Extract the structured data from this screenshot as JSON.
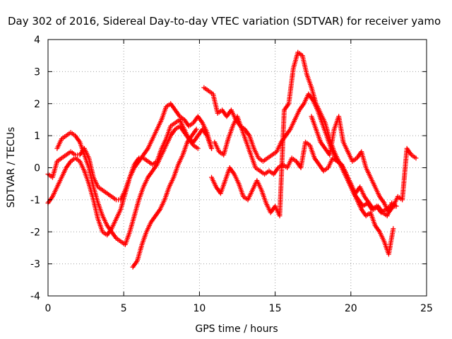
{
  "chart_data": {
    "type": "scatter",
    "title": "Day 302 of 2016, Sidereal Day-to-day VTEC variation (SDTVAR) for receiver yamo",
    "xlabel": "GPS time / hours",
    "ylabel": "SDTVAR / TECUs",
    "xlim": [
      0,
      25
    ],
    "ylim": [
      -4,
      4
    ],
    "xticks": [
      "0",
      "5",
      "10",
      "15",
      "20",
      "25"
    ],
    "yticks": [
      "-4",
      "-3",
      "-2",
      "-1",
      "0",
      "1",
      "2",
      "3",
      "4"
    ],
    "grid": true,
    "legend": "none",
    "marker": "plus",
    "color": "#ff0000",
    "series": [
      {
        "x": [
          0.0,
          0.3,
          0.6,
          0.9,
          1.2,
          1.5,
          1.8,
          2.1,
          2.4,
          2.7,
          3.0,
          3.3,
          3.6,
          3.9,
          4.2,
          4.5,
          4.8,
          5.1,
          5.4,
          5.7,
          6.0,
          6.3,
          6.6,
          6.9,
          7.2,
          7.5,
          7.8,
          8.1,
          8.4,
          8.7,
          9.0,
          9.3,
          9.6,
          9.9,
          10.2,
          10.5,
          10.8
        ],
        "y": [
          -0.2,
          -0.3,
          0.2,
          0.3,
          0.4,
          0.5,
          0.4,
          0.4,
          0.6,
          0.3,
          -0.3,
          -0.6,
          -0.7,
          -0.8,
          -0.9,
          -1.0,
          -1.0,
          -0.7,
          -0.3,
          0.1,
          0.3,
          0.3,
          0.2,
          0.1,
          0.2,
          0.6,
          0.9,
          1.3,
          1.4,
          1.5,
          1.2,
          0.9,
          0.8,
          1.0,
          1.2,
          1.0,
          0.6
        ]
      },
      {
        "x": [
          0.0,
          0.3,
          0.6,
          0.9,
          1.2,
          1.5,
          1.8,
          2.1,
          2.4,
          2.7,
          3.0,
          3.3,
          3.6,
          3.9,
          4.2,
          4.5,
          4.8,
          5.1,
          5.4,
          5.7,
          6.0,
          6.3,
          6.6,
          6.9,
          7.2,
          7.5,
          7.8,
          8.1,
          8.4,
          8.7,
          9.0,
          9.3,
          9.6,
          9.9,
          10.2,
          10.5,
          10.8
        ],
        "y": [
          -1.1,
          -0.9,
          -0.6,
          -0.3,
          0.0,
          0.2,
          0.3,
          0.2,
          -0.1,
          -0.5,
          -1.0,
          -1.6,
          -2.0,
          -2.1,
          -1.9,
          -1.6,
          -1.3,
          -0.8,
          -0.3,
          0.0,
          0.2,
          0.4,
          0.6,
          0.9,
          1.2,
          1.5,
          1.9,
          2.0,
          1.8,
          1.6,
          1.5,
          1.3,
          1.4,
          1.6,
          1.4,
          1.1,
          0.6
        ]
      },
      {
        "x": [
          0.6,
          0.9,
          1.2,
          1.5,
          1.8,
          2.1,
          2.4,
          2.7,
          3.0,
          3.3,
          3.6,
          3.9,
          4.2,
          4.5,
          4.8,
          5.1,
          5.4,
          5.7,
          6.0,
          6.3,
          6.6,
          6.9,
          7.2,
          7.5,
          7.8,
          8.1,
          8.4,
          8.7,
          9.0,
          9.3,
          9.6,
          9.9
        ],
        "y": [
          0.6,
          0.9,
          1.0,
          1.1,
          1.0,
          0.8,
          0.4,
          0.0,
          -0.6,
          -1.1,
          -1.5,
          -1.8,
          -2.0,
          -2.2,
          -2.3,
          -2.4,
          -2.0,
          -1.5,
          -1.0,
          -0.6,
          -0.3,
          -0.1,
          0.1,
          0.4,
          0.7,
          1.0,
          1.2,
          1.3,
          1.1,
          0.9,
          0.7,
          0.6
        ]
      },
      {
        "x": [
          5.6,
          5.9,
          6.2,
          6.5,
          6.8,
          7.1,
          7.4,
          7.7,
          8.0,
          8.3,
          8.6,
          8.9,
          9.2,
          9.5,
          9.8
        ],
        "y": [
          -3.1,
          -2.9,
          -2.4,
          -2.0,
          -1.7,
          -1.5,
          -1.3,
          -1.0,
          -0.6,
          -0.3,
          0.1,
          0.4,
          0.8,
          1.0,
          1.2
        ]
      },
      {
        "x": [
          10.3,
          10.6,
          10.9,
          11.2,
          11.5,
          11.8,
          12.1,
          12.4,
          12.7,
          13.0,
          13.3,
          13.6,
          13.9,
          14.2,
          14.5,
          14.8,
          15.1,
          15.4,
          15.7,
          16.0,
          16.3,
          16.6,
          16.9,
          17.2,
          17.5,
          17.8,
          18.1,
          18.4,
          18.7,
          19.0,
          19.3,
          19.6,
          19.9,
          20.2,
          20.5,
          20.8,
          21.1,
          21.4,
          21.7,
          22.0,
          22.3,
          22.6,
          22.9
        ],
        "y": [
          2.5,
          2.4,
          2.3,
          1.7,
          1.8,
          1.6,
          1.8,
          1.5,
          1.3,
          1.2,
          1.0,
          0.6,
          0.3,
          0.2,
          0.3,
          0.4,
          0.5,
          0.8,
          1.0,
          1.2,
          1.5,
          1.8,
          2.0,
          2.3,
          2.1,
          1.8,
          1.4,
          1.0,
          0.6,
          0.3,
          0.1,
          -0.2,
          -0.5,
          -0.8,
          -1.0,
          -1.2,
          -1.1,
          -1.3,
          -1.2,
          -1.4,
          -1.3,
          -1.2,
          -1.2
        ]
      },
      {
        "x": [
          10.8,
          11.1,
          11.4,
          11.7,
          12.0,
          12.3,
          12.6,
          12.9,
          13.2,
          13.5,
          13.8,
          14.1,
          14.4,
          14.7,
          15.0,
          15.3,
          15.6,
          15.9,
          16.2,
          16.5,
          16.8,
          17.1,
          17.4,
          17.7,
          18.0,
          18.3,
          18.6,
          18.9,
          19.2,
          19.5,
          19.8,
          20.1,
          20.4,
          20.7,
          21.0,
          21.3,
          21.6,
          21.9,
          22.2,
          22.5,
          22.8
        ],
        "y": [
          -0.3,
          -0.6,
          -0.8,
          -0.4,
          0.0,
          -0.2,
          -0.5,
          -0.9,
          -1.0,
          -0.7,
          -0.4,
          -0.7,
          -1.1,
          -1.4,
          -1.2,
          -1.5,
          1.8,
          2.0,
          3.1,
          3.6,
          3.5,
          2.9,
          2.5,
          2.0,
          1.7,
          1.4,
          0.9,
          0.5,
          0.2,
          0.0,
          -0.3,
          -0.7,
          -1.0,
          -1.3,
          -1.5,
          -1.4,
          -1.8,
          -2.0,
          -2.3,
          -2.7,
          -1.9
        ]
      },
      {
        "x": [
          11.0,
          11.3,
          11.6,
          11.9,
          12.2,
          12.5,
          12.8,
          13.1,
          13.4,
          13.7,
          14.0,
          14.3,
          14.6,
          14.9,
          15.2,
          15.5,
          15.8,
          16.1,
          16.4,
          16.7,
          17.0,
          17.3,
          17.6,
          17.9,
          18.2,
          18.5,
          18.8,
          19.1,
          19.4,
          19.7,
          20.0,
          20.3,
          20.6,
          20.9,
          21.2,
          21.5,
          21.8,
          22.1,
          22.4,
          22.7,
          23.0
        ],
        "y": [
          0.8,
          0.5,
          0.4,
          0.9,
          1.3,
          1.6,
          1.2,
          0.8,
          0.4,
          0.0,
          -0.1,
          -0.2,
          -0.1,
          -0.2,
          0.0,
          0.1,
          0.0,
          0.3,
          0.2,
          0.0,
          0.8,
          0.7,
          0.3,
          0.1,
          -0.1,
          0.0,
          0.3,
          0.2,
          0.1,
          -0.2,
          -0.5,
          -0.8,
          -0.6,
          -0.9,
          -1.1,
          -1.3,
          -1.2,
          -1.4,
          -1.5,
          -1.1,
          -1.2
        ]
      },
      {
        "x": [
          17.4,
          17.7,
          18.0,
          18.3,
          18.6,
          18.9,
          19.2,
          19.5,
          19.8,
          20.1,
          20.4,
          20.7,
          21.0,
          21.3,
          21.6,
          21.9,
          22.2,
          22.5,
          22.8,
          23.1,
          23.4,
          23.7,
          24.0,
          24.3
        ],
        "y": [
          1.6,
          1.2,
          0.8,
          0.6,
          0.4,
          1.2,
          1.6,
          0.8,
          0.5,
          0.2,
          0.3,
          0.5,
          0.0,
          -0.3,
          -0.6,
          -0.9,
          -1.1,
          -1.4,
          -1.2,
          -0.9,
          -1.0,
          0.6,
          0.4,
          0.3
        ]
      }
    ]
  }
}
